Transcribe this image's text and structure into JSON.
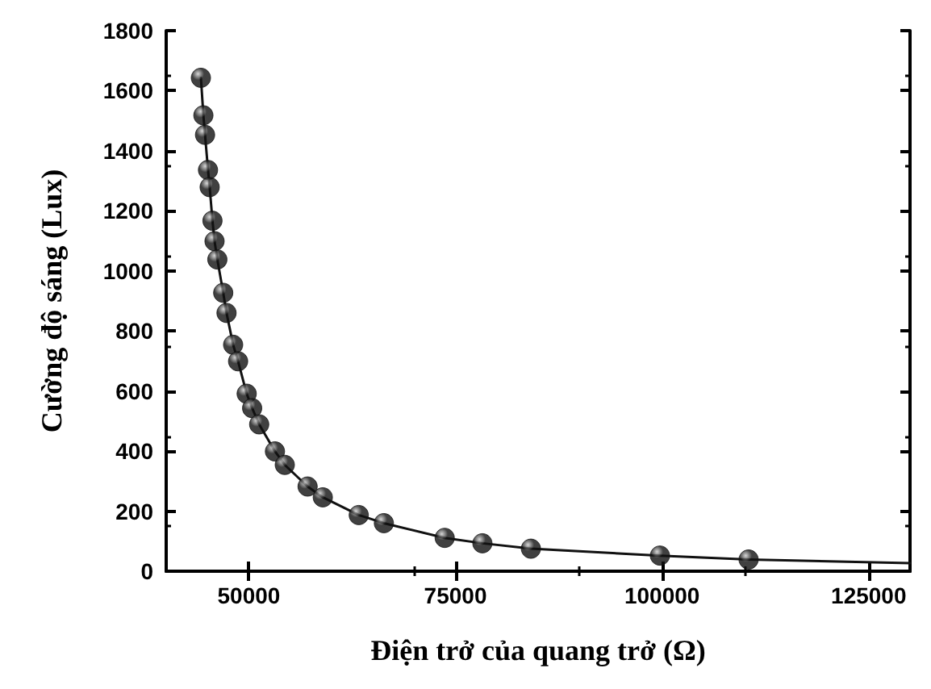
{
  "chart_data": {
    "type": "scatter",
    "xlabel": "Điện trở của quang trở (Ω)",
    "ylabel": "Cường độ sáng (Lux)",
    "xlim": [
      40000,
      130000
    ],
    "xticks": [
      50000,
      75000,
      100000,
      125000
    ],
    "ylim": [
      0,
      1800
    ],
    "yticks": [
      0,
      200,
      400,
      600,
      800,
      1000,
      1200,
      1400,
      1600,
      1800
    ],
    "grid": false,
    "series": [
      {
        "color": "#111111",
        "marker": "circle",
        "x": [
          44200,
          44500,
          44700,
          45060,
          45260,
          45600,
          45850,
          46190,
          46900,
          47300,
          48100,
          48700,
          49740,
          50400,
          51250,
          53160,
          54350,
          57110,
          58950,
          63300,
          66340,
          73700,
          78260,
          84130,
          99740,
          110470
        ],
        "values": [
          1643,
          1518,
          1453,
          1336,
          1279,
          1167,
          1099,
          1038,
          927,
          860,
          754,
          699,
          591,
          543,
          489,
          399,
          354,
          282,
          246,
          187,
          160,
          111,
          93,
          75,
          52,
          39
        ]
      },
      {
        "type": "line",
        "color": "#111111",
        "marker": "none",
        "line_style": "solid",
        "x": [
          44200,
          44500,
          44700,
          45060,
          45260,
          45600,
          45850,
          46190,
          46900,
          47300,
          48100,
          48700,
          49740,
          50400,
          51250,
          53160,
          54350,
          57110,
          58950,
          63300,
          66340,
          73700,
          78260,
          84130,
          99740,
          110470,
          130000
        ],
        "values": [
          1643,
          1518,
          1453,
          1336,
          1279,
          1167,
          1099,
          1038,
          927,
          860,
          754,
          699,
          591,
          543,
          489,
          399,
          354,
          282,
          246,
          187,
          160,
          111,
          93,
          75,
          52,
          39,
          27
        ]
      }
    ]
  }
}
